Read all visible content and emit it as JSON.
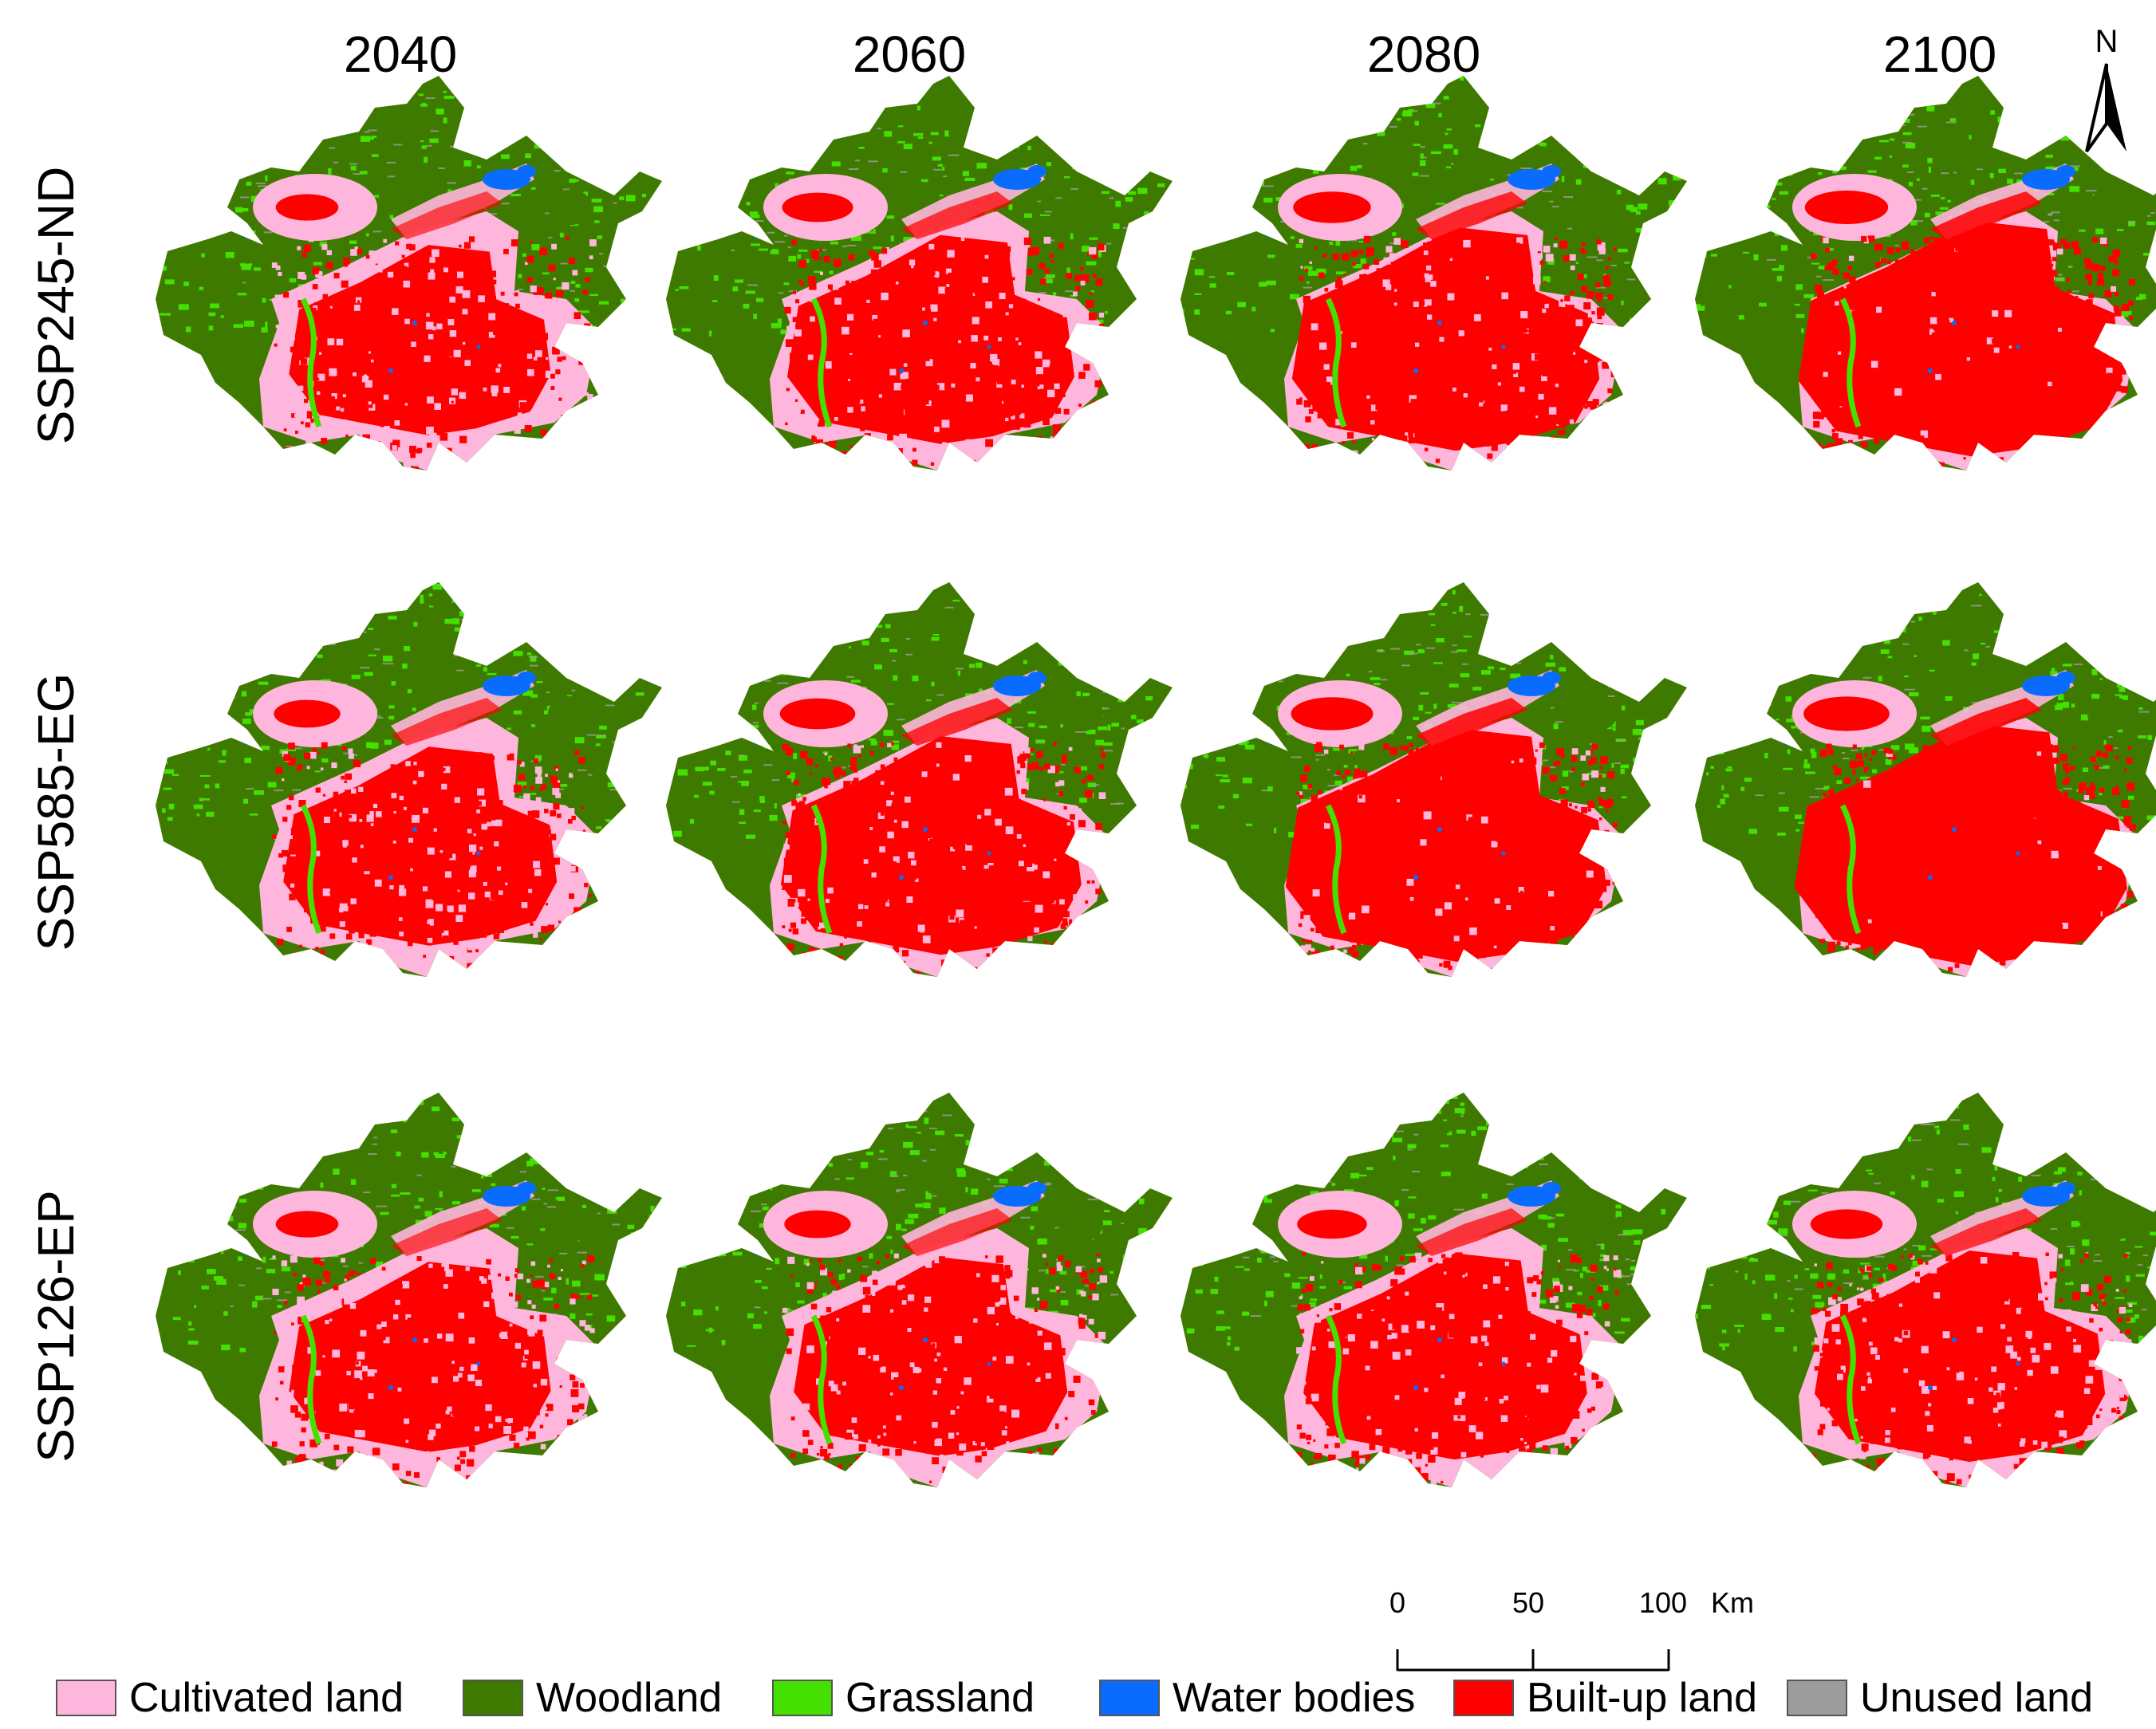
{
  "years": [
    "2040",
    "2060",
    "2080",
    "2100"
  ],
  "scenarios": [
    "SSP245-ND",
    "SSP585-EG",
    "SSP126-EP"
  ],
  "north_arrow": {
    "label": "N",
    "icon": "north-arrow-icon"
  },
  "scale_bar": {
    "ticks": [
      "0",
      "50",
      "100"
    ],
    "unit": "Km"
  },
  "legend": [
    {
      "label": "Cultivated land",
      "color": "#ffb6dc"
    },
    {
      "label": "Woodland",
      "color": "#3f7a00"
    },
    {
      "label": "Grassland",
      "color": "#44e000"
    },
    {
      "label": "Water bodies",
      "color": "#0a6cff"
    },
    {
      "label": "Built-up land",
      "color": "#ff0000"
    },
    {
      "label": "Unused land",
      "color": "#9c9c9c"
    }
  ],
  "builtup_intensity": [
    [
      0.55,
      0.7,
      0.82,
      0.92
    ],
    [
      0.62,
      0.78,
      0.9,
      0.97
    ],
    [
      0.55,
      0.62,
      0.68,
      0.72
    ]
  ]
}
